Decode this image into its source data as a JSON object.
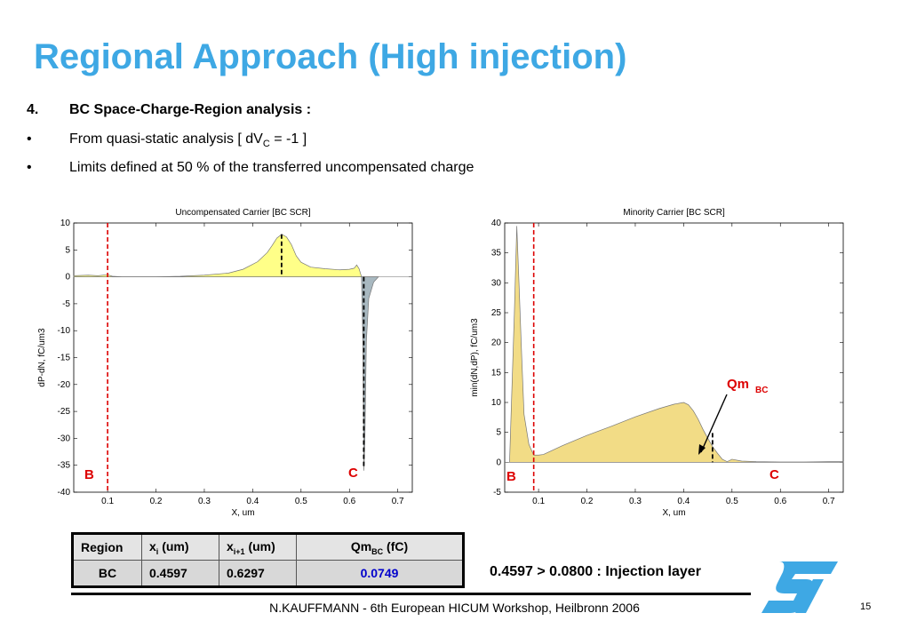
{
  "title": "Regional Approach (High injection)",
  "bullets": [
    {
      "marker": "4.",
      "text": "BC Space-Charge-Region analysis :"
    },
    {
      "marker": "•",
      "text": "From quasi-static analysis [ dV",
      "sub": "C",
      "tail": " = -1 ]"
    },
    {
      "marker": "•",
      "text": "Limits defined at 50 % of the transferred uncompensated charge"
    }
  ],
  "chart_data": [
    {
      "type": "area",
      "title": "Uncompensated Carrier [BC SCR]",
      "xlabel": "X, um",
      "ylabel": "dP-dN, fC/um3",
      "xlim": [
        0.03,
        0.73
      ],
      "ylim": [
        -40,
        10
      ],
      "xticks": [
        "0.1",
        "0.2",
        "0.3",
        "0.4",
        "0.5",
        "0.6",
        "0.7"
      ],
      "xtick_values": [
        0.1,
        0.2,
        0.3,
        0.4,
        0.5,
        0.6,
        0.7
      ],
      "yticks": [
        "10",
        "5",
        "0",
        "-5",
        "-10",
        "-15",
        "-20",
        "-25",
        "-30",
        "-35",
        "-40"
      ],
      "ytick_values": [
        10,
        5,
        0,
        -5,
        -10,
        -15,
        -20,
        -25,
        -30,
        -35,
        -40
      ],
      "series": [
        {
          "x": [
            0.03,
            0.06,
            0.08,
            0.1,
            0.11,
            0.13,
            0.2,
            0.25,
            0.3,
            0.35,
            0.38,
            0.41,
            0.43,
            0.44,
            0.45,
            0.46,
            0.47,
            0.48,
            0.49,
            0.5,
            0.52,
            0.55,
            0.58,
            0.6,
            0.61,
            0.615,
            0.62,
            0.625
          ],
          "y": [
            0.2,
            0.3,
            0.2,
            0.4,
            0.1,
            0,
            0,
            0.1,
            0.3,
            0.7,
            1.4,
            2.8,
            4.5,
            5.8,
            7.2,
            7.9,
            7.4,
            6.0,
            3.9,
            2.7,
            1.8,
            1.5,
            1.3,
            1.4,
            1.6,
            2.2,
            1.5,
            0
          ],
          "color": "#ffff88"
        },
        {
          "x": [
            0.625,
            0.628,
            0.63,
            0.632,
            0.635,
            0.64,
            0.65,
            0.66
          ],
          "y": [
            0,
            -13,
            -36,
            -30,
            -12,
            -4,
            -1,
            0
          ],
          "color": "#a8b8c0"
        }
      ],
      "markers": [
        {
          "label": "B",
          "x": 0.1,
          "style": "red-dashed"
        },
        {
          "label": "C",
          "x": 0.6297,
          "style": "black-dashed"
        },
        {
          "x": 0.4597,
          "style": "black-dashed"
        }
      ]
    },
    {
      "type": "area",
      "title": "Minority Carrier [BC SCR]",
      "xlabel": "X, um",
      "ylabel": "min(dN,dP), fC/um3",
      "xlim": [
        0.03,
        0.73
      ],
      "ylim": [
        -5,
        40
      ],
      "xticks": [
        "0.1",
        "0.2",
        "0.3",
        "0.4",
        "0.5",
        "0.6",
        "0.7"
      ],
      "xtick_values": [
        0.1,
        0.2,
        0.3,
        0.4,
        0.5,
        0.6,
        0.7
      ],
      "yticks": [
        "40",
        "35",
        "30",
        "25",
        "20",
        "15",
        "10",
        "5",
        "0",
        "-5"
      ],
      "ytick_values": [
        40,
        35,
        30,
        25,
        20,
        15,
        10,
        5,
        0,
        -5
      ],
      "series": [
        {
          "x": [
            0.03,
            0.04,
            0.05,
            0.055,
            0.06,
            0.065,
            0.07,
            0.08,
            0.09,
            0.1,
            0.11,
            0.15,
            0.2,
            0.25,
            0.3,
            0.35,
            0.38,
            0.4,
            0.41,
            0.42,
            0.43,
            0.44,
            0.45,
            0.46,
            0.47,
            0.48,
            0.49,
            0.5,
            0.52,
            0.55,
            0.6,
            0.65,
            0.7,
            0.73
          ],
          "y": [
            0,
            0,
            25,
            39.5,
            29,
            18,
            8,
            3,
            1.2,
            1.2,
            1.3,
            2.8,
            4.5,
            6.0,
            7.6,
            9.0,
            9.7,
            10.0,
            9.6,
            8.6,
            7.2,
            5.5,
            4.0,
            2.6,
            1.5,
            0.5,
            0.1,
            0.5,
            0.2,
            0.1,
            0.05,
            0.05,
            0.1,
            0.1
          ],
          "color": "#f2dc86"
        }
      ],
      "markers": [
        {
          "label": "B",
          "x": 0.09,
          "style": "red-dashed"
        },
        {
          "label": "C",
          "x": 0.6297,
          "style": "none"
        },
        {
          "x": 0.4597,
          "style": "black-dashed"
        }
      ],
      "annotation": {
        "text": "Qm",
        "sub": "BC"
      }
    }
  ],
  "table": {
    "headers": [
      {
        "text": "Region"
      },
      {
        "text": "x",
        "sub": "i",
        "tail": " (um)"
      },
      {
        "text": "x",
        "sub": "i+1",
        "tail": " (um)"
      },
      {
        "text": "Qm",
        "sub": "BC",
        "tail": " (fC)"
      }
    ],
    "row": [
      "BC",
      "0.4597",
      "0.6297",
      "0.0749"
    ],
    "highlight_color": "#0000cc"
  },
  "note": "0.4597 > 0.0800 : Injection layer",
  "footer": "N.KAUFFMANN - 6th European HICUM Workshop, Heilbronn 2006",
  "page_number": "15",
  "logo": {
    "name": "st-logo",
    "color": "#3ea8e4"
  }
}
